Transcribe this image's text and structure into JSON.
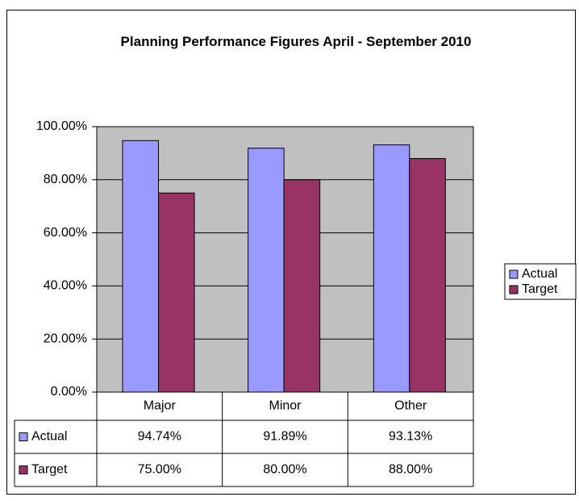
{
  "chart_data": {
    "type": "bar",
    "title": "Planning Performance Figures April - September 2010",
    "categories": [
      "Major",
      "Minor",
      "Other"
    ],
    "series": [
      {
        "name": "Actual",
        "color": "#9999ff",
        "values": [
          94.74,
          91.89,
          93.13
        ],
        "value_labels": [
          "94.74%",
          "91.89%",
          "93.13%"
        ]
      },
      {
        "name": "Target",
        "color": "#993366",
        "values": [
          75,
          80,
          88
        ],
        "value_labels": [
          "75.00%",
          "80.00%",
          "88.00%"
        ]
      }
    ],
    "ylim": [
      0,
      100
    ],
    "yticks": [
      {
        "value": 0,
        "label": "0.00%"
      },
      {
        "value": 20,
        "label": "20.00%"
      },
      {
        "value": 40,
        "label": "40.00%"
      },
      {
        "value": 60,
        "label": "60.00%"
      },
      {
        "value": 80,
        "label": "80.00%"
      },
      {
        "value": 100,
        "label": "100.00%"
      }
    ],
    "grid": true,
    "legend": "right"
  }
}
